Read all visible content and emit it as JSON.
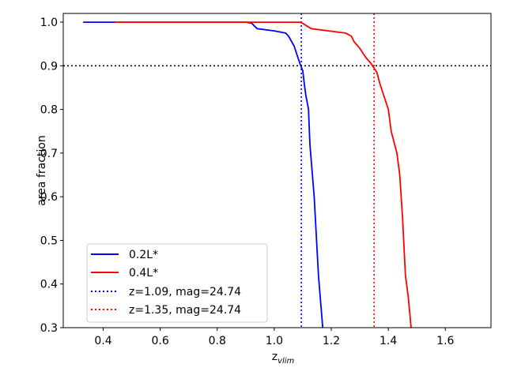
{
  "chart_data": {
    "type": "line",
    "xlabel_main": "z",
    "xlabel_sub": "vlim",
    "ylabel": "area fraction",
    "xlim": [
      0.26,
      1.76
    ],
    "ylim": [
      0.3,
      1.02
    ],
    "xticks": [
      0.4,
      0.6,
      0.8,
      1.0,
      1.2,
      1.4,
      1.6
    ],
    "xtick_labels": [
      "0.4",
      "0.6",
      "0.8",
      "1.0",
      "1.2",
      "1.4",
      "1.6"
    ],
    "yticks": [
      0.3,
      0.4,
      0.5,
      0.6,
      0.7,
      0.8,
      0.9,
      1.0
    ],
    "ytick_labels": [
      "0.3",
      "0.4",
      "0.5",
      "0.6",
      "0.7",
      "0.8",
      "0.9",
      "1.0"
    ],
    "legend_position": "lower-left",
    "series": [
      {
        "name": "0.2L*",
        "color": "#0000ff",
        "style": "solid",
        "x": [
          0.33,
          0.9,
          0.92,
          0.94,
          1.0,
          1.04,
          1.05,
          1.07,
          1.08,
          1.09,
          1.1,
          1.105,
          1.11,
          1.12,
          1.125,
          1.13,
          1.14,
          1.15,
          1.155,
          1.16,
          1.165,
          1.17
        ],
        "y": [
          1.0,
          1.0,
          0.998,
          0.985,
          0.98,
          0.975,
          0.968,
          0.945,
          0.925,
          0.905,
          0.888,
          0.86,
          0.835,
          0.8,
          0.72,
          0.68,
          0.6,
          0.48,
          0.42,
          0.38,
          0.34,
          0.3
        ]
      },
      {
        "name": "0.4L*",
        "color": "#ff0000",
        "style": "solid",
        "x": [
          0.44,
          1.0,
          1.09,
          1.1,
          1.13,
          1.25,
          1.27,
          1.28,
          1.3,
          1.32,
          1.34,
          1.36,
          1.37,
          1.38,
          1.4,
          1.41,
          1.43,
          1.44,
          1.45,
          1.46,
          1.47,
          1.48
        ],
        "y": [
          1.0,
          1.0,
          1.0,
          0.997,
          0.985,
          0.975,
          0.968,
          0.955,
          0.94,
          0.92,
          0.905,
          0.885,
          0.86,
          0.84,
          0.8,
          0.75,
          0.7,
          0.65,
          0.55,
          0.42,
          0.37,
          0.3
        ]
      }
    ],
    "reference_lines": [
      {
        "orientation": "vertical",
        "value": 1.095,
        "color": "#0000ff",
        "style": "dotted",
        "name": "z=1.09, mag=24.74"
      },
      {
        "orientation": "vertical",
        "value": 1.35,
        "color": "#ff0000",
        "style": "dotted",
        "name": "z=1.35, mag=24.74"
      },
      {
        "orientation": "horizontal",
        "value": 0.9,
        "color": "#000000",
        "style": "dotted",
        "name": ""
      }
    ]
  }
}
